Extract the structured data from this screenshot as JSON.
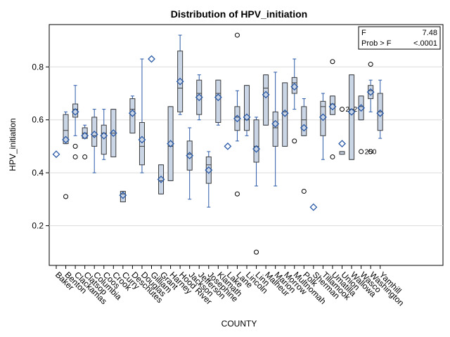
{
  "chart_data": {
    "type": "box",
    "title": "Distribution of HPV_initiation",
    "xlabel": "COUNTY",
    "ylabel": "HPV_initiation",
    "ylim": [
      0.05,
      0.96
    ],
    "yticks": [
      0.2,
      0.4,
      0.6,
      0.8
    ],
    "ytick_labels": [
      "0.2",
      "0.4",
      "0.6",
      "0.8"
    ],
    "grid": "horizontal",
    "stats_box": {
      "row1_label": "F",
      "row1_value": "7.48",
      "row2_label": "Prob > F",
      "row2_value": "<.0001"
    },
    "colors": {
      "box_fill": "#cad5e5",
      "box_stroke": "#3b3b3b",
      "whisker": "#2a5aa8",
      "mean_marker": "#2a5aa8",
      "grid": "#dcdcdc"
    },
    "categories": [
      {
        "name": "Baker",
        "q1": null,
        "median": null,
        "q3": null,
        "lo": null,
        "hi": null,
        "mean": 0.47,
        "outliers": []
      },
      {
        "name": "Benton",
        "q1": 0.51,
        "median": 0.56,
        "q3": 0.62,
        "lo": 0.51,
        "hi": 0.63,
        "mean": 0.525,
        "outliers": [
          0.31
        ]
      },
      {
        "name": "Clackamas",
        "q1": 0.61,
        "median": 0.64,
        "q3": 0.66,
        "lo": 0.54,
        "hi": 0.73,
        "mean": 0.63,
        "outliers": [
          0.5,
          0.46
        ]
      },
      {
        "name": "Clatsop",
        "q1": 0.53,
        "median": 0.55,
        "q3": 0.57,
        "lo": 0.53,
        "hi": 0.58,
        "mean": 0.54,
        "outliers": [
          0.46
        ]
      },
      {
        "name": "Columbia",
        "q1": 0.5,
        "median": 0.54,
        "q3": 0.61,
        "lo": 0.4,
        "hi": 0.64,
        "mean": 0.545,
        "outliers": []
      },
      {
        "name": "Coos",
        "q1": 0.47,
        "median": 0.55,
        "q3": 0.58,
        "lo": 0.45,
        "hi": 0.64,
        "mean": 0.54,
        "outliers": []
      },
      {
        "name": "Crook",
        "q1": 0.46,
        "median": 0.55,
        "q3": 0.64,
        "lo": 0.46,
        "hi": 0.64,
        "mean": 0.55,
        "outliers": []
      },
      {
        "name": "Curry",
        "q1": 0.29,
        "median": 0.32,
        "q3": 0.33,
        "lo": 0.29,
        "hi": 0.33,
        "mean": 0.315,
        "outliers": []
      },
      {
        "name": "Deschutes",
        "q1": 0.55,
        "median": 0.64,
        "q3": 0.68,
        "lo": 0.55,
        "hi": 0.69,
        "mean": 0.625,
        "outliers": []
      },
      {
        "name": "Douglas",
        "q1": 0.43,
        "median": 0.5,
        "q3": 0.59,
        "lo": 0.4,
        "hi": 0.83,
        "mean": 0.525,
        "outliers": []
      },
      {
        "name": "Gilliam",
        "q1": null,
        "median": null,
        "q3": null,
        "lo": null,
        "hi": null,
        "mean": 0.83,
        "outliers": []
      },
      {
        "name": "Grant",
        "q1": 0.32,
        "median": 0.37,
        "q3": 0.43,
        "lo": 0.32,
        "hi": 0.43,
        "mean": 0.375,
        "outliers": []
      },
      {
        "name": "Harney",
        "q1": 0.37,
        "median": 0.5,
        "q3": 0.65,
        "lo": 0.37,
        "hi": 0.65,
        "mean": 0.51,
        "outliers": []
      },
      {
        "name": "Hood River",
        "q1": 0.63,
        "median": 0.72,
        "q3": 0.86,
        "lo": 0.62,
        "hi": 0.92,
        "mean": 0.745,
        "outliers": []
      },
      {
        "name": "Jackson",
        "q1": 0.41,
        "median": 0.47,
        "q3": 0.52,
        "lo": 0.3,
        "hi": 0.57,
        "mean": 0.465,
        "outliers": []
      },
      {
        "name": "Jefferson",
        "q1": 0.62,
        "median": 0.7,
        "q3": 0.75,
        "lo": 0.6,
        "hi": 0.77,
        "mean": 0.685,
        "outliers": []
      },
      {
        "name": "Josephine",
        "q1": 0.36,
        "median": 0.43,
        "q3": 0.46,
        "lo": 0.27,
        "hi": 0.48,
        "mean": 0.41,
        "outliers": []
      },
      {
        "name": "Klamath",
        "q1": 0.59,
        "median": 0.7,
        "q3": 0.75,
        "lo": 0.58,
        "hi": 0.75,
        "mean": 0.685,
        "outliers": []
      },
      {
        "name": "Lake",
        "q1": null,
        "median": null,
        "q3": null,
        "lo": null,
        "hi": null,
        "mean": 0.5,
        "outliers": []
      },
      {
        "name": "Lane",
        "q1": 0.56,
        "median": 0.61,
        "q3": 0.65,
        "lo": 0.52,
        "hi": 0.71,
        "mean": 0.605,
        "outliers": [
          0.92,
          0.32
        ]
      },
      {
        "name": "Lincoln",
        "q1": 0.56,
        "median": 0.6,
        "q3": 0.73,
        "lo": 0.54,
        "hi": 0.73,
        "mean": 0.61,
        "outliers": []
      },
      {
        "name": "Linn",
        "q1": 0.44,
        "median": 0.5,
        "q3": 0.6,
        "lo": 0.35,
        "hi": 0.61,
        "mean": 0.49,
        "outliers": [
          0.1
        ]
      },
      {
        "name": "Malheur",
        "q1": 0.58,
        "median": 0.72,
        "q3": 0.77,
        "lo": 0.58,
        "hi": 0.77,
        "mean": 0.695,
        "outliers": []
      },
      {
        "name": "Marion",
        "q1": 0.5,
        "median": 0.57,
        "q3": 0.63,
        "lo": 0.35,
        "hi": 0.78,
        "mean": 0.585,
        "outliers": []
      },
      {
        "name": "Morrow",
        "q1": 0.5,
        "median": 0.63,
        "q3": 0.74,
        "lo": 0.5,
        "hi": 0.74,
        "mean": 0.625,
        "outliers": []
      },
      {
        "name": "Multnomah",
        "q1": 0.7,
        "median": 0.74,
        "q3": 0.76,
        "lo": 0.64,
        "hi": 0.83,
        "mean": 0.725,
        "outliers": [
          0.52
        ]
      },
      {
        "name": "Polk",
        "q1": 0.54,
        "median": 0.6,
        "q3": 0.65,
        "lo": 0.54,
        "hi": 0.68,
        "mean": 0.57,
        "outliers": [
          0.33
        ]
      },
      {
        "name": "Sherman",
        "q1": null,
        "median": null,
        "q3": null,
        "lo": null,
        "hi": null,
        "mean": 0.27,
        "outliers": []
      },
      {
        "name": "Tillamook",
        "q1": 0.54,
        "median": 0.65,
        "q3": 0.67,
        "lo": 0.45,
        "hi": 0.7,
        "mean": 0.61,
        "outliers": []
      },
      {
        "name": "Umatilla",
        "q1": 0.62,
        "median": 0.66,
        "q3": 0.69,
        "lo": 0.62,
        "hi": 0.69,
        "mean": 0.65,
        "outliers": [
          0.82,
          0.46
        ]
      },
      {
        "name": "Union",
        "q1": 0.47,
        "median": 0.48,
        "q3": 0.48,
        "lo": 0.47,
        "hi": 0.48,
        "mean": 0.51,
        "outliers": [
          0.64
        ],
        "outlier_labels": [
          "232"
        ]
      },
      {
        "name": "Wallowa",
        "q1": 0.45,
        "median": 0.64,
        "q3": 0.77,
        "lo": 0.45,
        "hi": 0.77,
        "mean": 0.63,
        "outliers": []
      },
      {
        "name": "Wasco",
        "q1": 0.6,
        "median": 0.65,
        "q3": 0.69,
        "lo": 0.6,
        "hi": 0.69,
        "mean": 0.645,
        "outliers": [
          0.48
        ],
        "outlier_labels": [
          "250"
        ]
      },
      {
        "name": "Washington",
        "q1": 0.68,
        "median": 0.71,
        "q3": 0.73,
        "lo": 0.63,
        "hi": 0.75,
        "mean": 0.705,
        "outliers": [
          0.81,
          0.48
        ]
      },
      {
        "name": "Yamhill",
        "q1": 0.56,
        "median": 0.63,
        "q3": 0.7,
        "lo": 0.53,
        "hi": 0.75,
        "mean": 0.625,
        "outliers": []
      }
    ]
  }
}
